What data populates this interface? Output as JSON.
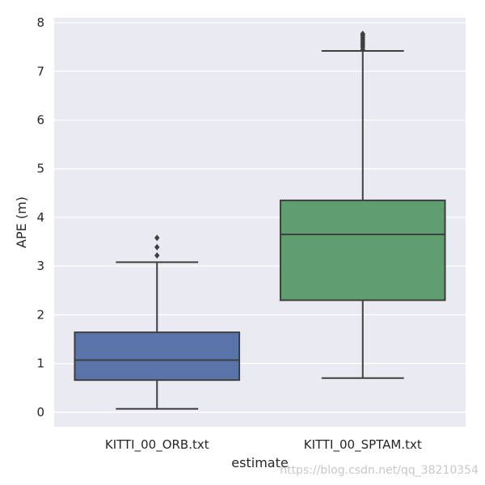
{
  "chart_data": {
    "type": "box",
    "xlabel": "estimate",
    "ylabel": "APE (m)",
    "ylim": [
      -0.3,
      8.1
    ],
    "yticks": [
      0,
      1,
      2,
      3,
      4,
      5,
      6,
      7,
      8
    ],
    "grid": true,
    "colors": {
      "background": "#eaeaf2",
      "grid": "#ffffff",
      "line": "#3f3f3f"
    },
    "boxes": [
      {
        "label": "KITTI_00_ORB.txt",
        "color": "#5874a9",
        "whisker_low": 0.07,
        "q1": 0.66,
        "median": 1.07,
        "q3": 1.64,
        "whisker_high": 3.08,
        "outliers": [
          3.22,
          3.39,
          3.58
        ]
      },
      {
        "label": "KITTI_00_SPTAM.txt",
        "color": "#5f9e6e",
        "whisker_low": 0.7,
        "q1": 2.3,
        "median": 3.65,
        "q3": 4.35,
        "whisker_high": 7.42,
        "outliers": [
          7.45,
          7.5,
          7.54,
          7.58,
          7.62,
          7.66,
          7.7,
          7.74,
          7.77
        ]
      }
    ]
  },
  "watermark": "https://blog.csdn.net/qq_38210354"
}
